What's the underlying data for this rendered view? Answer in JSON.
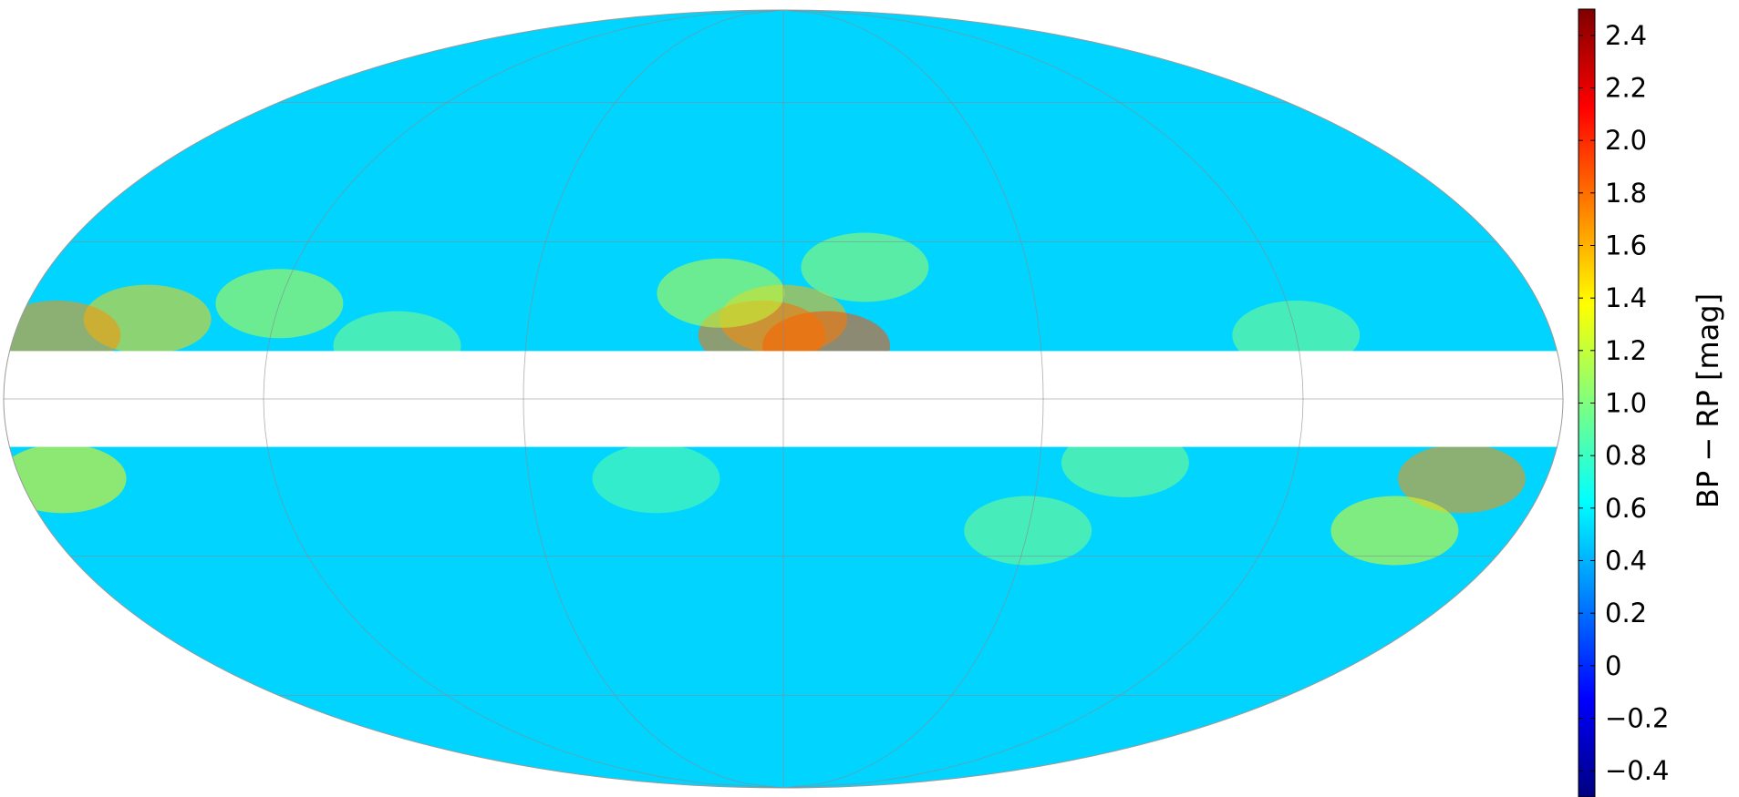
{
  "chart_data": {
    "type": "heatmap",
    "projection": "mollweide",
    "grid": true,
    "legend_placement": "right",
    "colormap": "jet",
    "colormap_colors": [
      "#00007f",
      "#0000ff",
      "#007fff",
      "#00ffff",
      "#7fff7f",
      "#ffff00",
      "#ff7f00",
      "#ff0000",
      "#7f0000"
    ],
    "value_range": [
      -0.5,
      2.5
    ],
    "colorbar": {
      "label": "BP − RP [mag]",
      "ticks": [
        {
          "value": 2.4,
          "label": "2.4"
        },
        {
          "value": 2.2,
          "label": "2.2"
        },
        {
          "value": 2.0,
          "label": "2.0"
        },
        {
          "value": 1.8,
          "label": "1.8"
        },
        {
          "value": 1.6,
          "label": "1.6"
        },
        {
          "value": 1.4,
          "label": "1.4"
        },
        {
          "value": 1.2,
          "label": "1.2"
        },
        {
          "value": 1.0,
          "label": "1.0"
        },
        {
          "value": 0.8,
          "label": "0.8"
        },
        {
          "value": 0.6,
          "label": "0.6"
        },
        {
          "value": 0.4,
          "label": "0.4"
        },
        {
          "value": 0.2,
          "label": "0.2"
        },
        {
          "value": 0,
          "label": "0"
        },
        {
          "value": -0.2,
          "label": "−0.2"
        },
        {
          "value": -0.4,
          "label": "−0.4"
        }
      ]
    },
    "background_value": 0.5,
    "empty_band_latitude": [
      -9,
      9
    ],
    "regions": [
      {
        "lon": 0,
        "lat": 15,
        "value": 1.6
      },
      {
        "lon": -10,
        "lat": 10,
        "value": 1.9
      },
      {
        "lon": 5,
        "lat": 12,
        "value": 1.8
      },
      {
        "lon": -20,
        "lat": 25,
        "value": 1.1
      },
      {
        "lon": 15,
        "lat": 20,
        "value": 1.2
      },
      {
        "lon": 150,
        "lat": 15,
        "value": 1.5
      },
      {
        "lon": 170,
        "lat": 12,
        "value": 1.7
      },
      {
        "lon": 120,
        "lat": 18,
        "value": 1.2
      },
      {
        "lon": -160,
        "lat": -15,
        "value": 1.7
      },
      {
        "lon": -150,
        "lat": -25,
        "value": 1.3
      },
      {
        "lon": 170,
        "lat": -15,
        "value": 1.4
      },
      {
        "lon": -60,
        "lat": -25,
        "value": 1.0
      },
      {
        "lon": -80,
        "lat": -12,
        "value": 1.0
      },
      {
        "lon": 30,
        "lat": -15,
        "value": 0.9
      },
      {
        "lon": 90,
        "lat": 10,
        "value": 1.0
      },
      {
        "lon": -120,
        "lat": 12,
        "value": 1.0
      }
    ]
  }
}
